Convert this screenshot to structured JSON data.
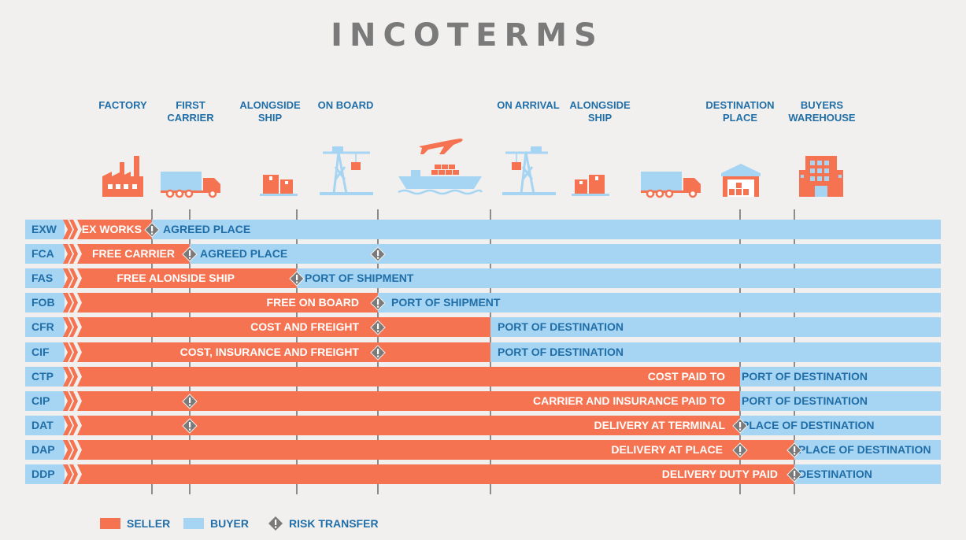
{
  "title": "INCOTERMS",
  "colors": {
    "seller": "#f57350",
    "buyer": "#a6d4f3",
    "text": "#1f6ea8",
    "risk": "#7a7a7a"
  },
  "places": [
    {
      "line1": "FACTORY",
      "line2": "",
      "icon": "factory-icon"
    },
    {
      "line1": "FIRST",
      "line2": "CARRIER",
      "icon": "truck-icon"
    },
    {
      "line1": "ALONGSIDE",
      "line2": "SHIP",
      "icon": "boxes-icon"
    },
    {
      "line1": "ON BOARD",
      "line2": "",
      "icon": "crane-icon"
    },
    {
      "line1": "",
      "line2": "",
      "icon": "plane-ship-icon"
    },
    {
      "line1": "ON ARRIVAL",
      "line2": "",
      "icon": "crane-icon"
    },
    {
      "line1": "ALONGSIDE",
      "line2": "SHIP",
      "icon": "boxes-icon"
    },
    {
      "line1": "",
      "line2": "",
      "icon": "truck-icon"
    },
    {
      "line1": "DESTINATION",
      "line2": "PLACE",
      "icon": "warehouse-icon"
    },
    {
      "line1": "BUYERS",
      "line2": "WAREHOUSE",
      "icon": "building-icon"
    }
  ],
  "terms": [
    {
      "code": "EXW",
      "seller_label": "EX WORKS",
      "buyer_label": "AGREED PLACE"
    },
    {
      "code": "FCA",
      "seller_label": "FREE CARRIER",
      "buyer_label": "AGREED PLACE"
    },
    {
      "code": "FAS",
      "seller_label": "FREE ALONSIDE SHIP",
      "buyer_label": "PORT OF SHIPMENT"
    },
    {
      "code": "FOB",
      "seller_label": "FREE ON BOARD",
      "buyer_label": "PORT OF SHIPMENT"
    },
    {
      "code": "CFR",
      "seller_label": "COST AND FREIGHT",
      "buyer_label": "PORT OF DESTINATION"
    },
    {
      "code": "CIF",
      "seller_label": "COST, INSURANCE AND FREIGHT",
      "buyer_label": "PORT OF DESTINATION"
    },
    {
      "code": "CTP",
      "seller_label": "COST PAID TO",
      "buyer_label": "PORT OF DESTINATION"
    },
    {
      "code": "CIP",
      "seller_label": "CARRIER AND INSURANCE PAID TO",
      "buyer_label": "PORT OF DESTINATION"
    },
    {
      "code": "DAT",
      "seller_label": "DELIVERY AT TERMINAL",
      "buyer_label": "PLACE OF DESTINATION"
    },
    {
      "code": "DAP",
      "seller_label": "DELIVERY AT PLACE",
      "buyer_label": "PLACE OF DESTINATION"
    },
    {
      "code": "DDP",
      "seller_label": "DELIVERY DUTY PAID",
      "buyer_label": "DESTINATION"
    }
  ],
  "legend": {
    "seller": "SELLER",
    "buyer": "BUYER",
    "risk": "RISK TRANSFER"
  }
}
